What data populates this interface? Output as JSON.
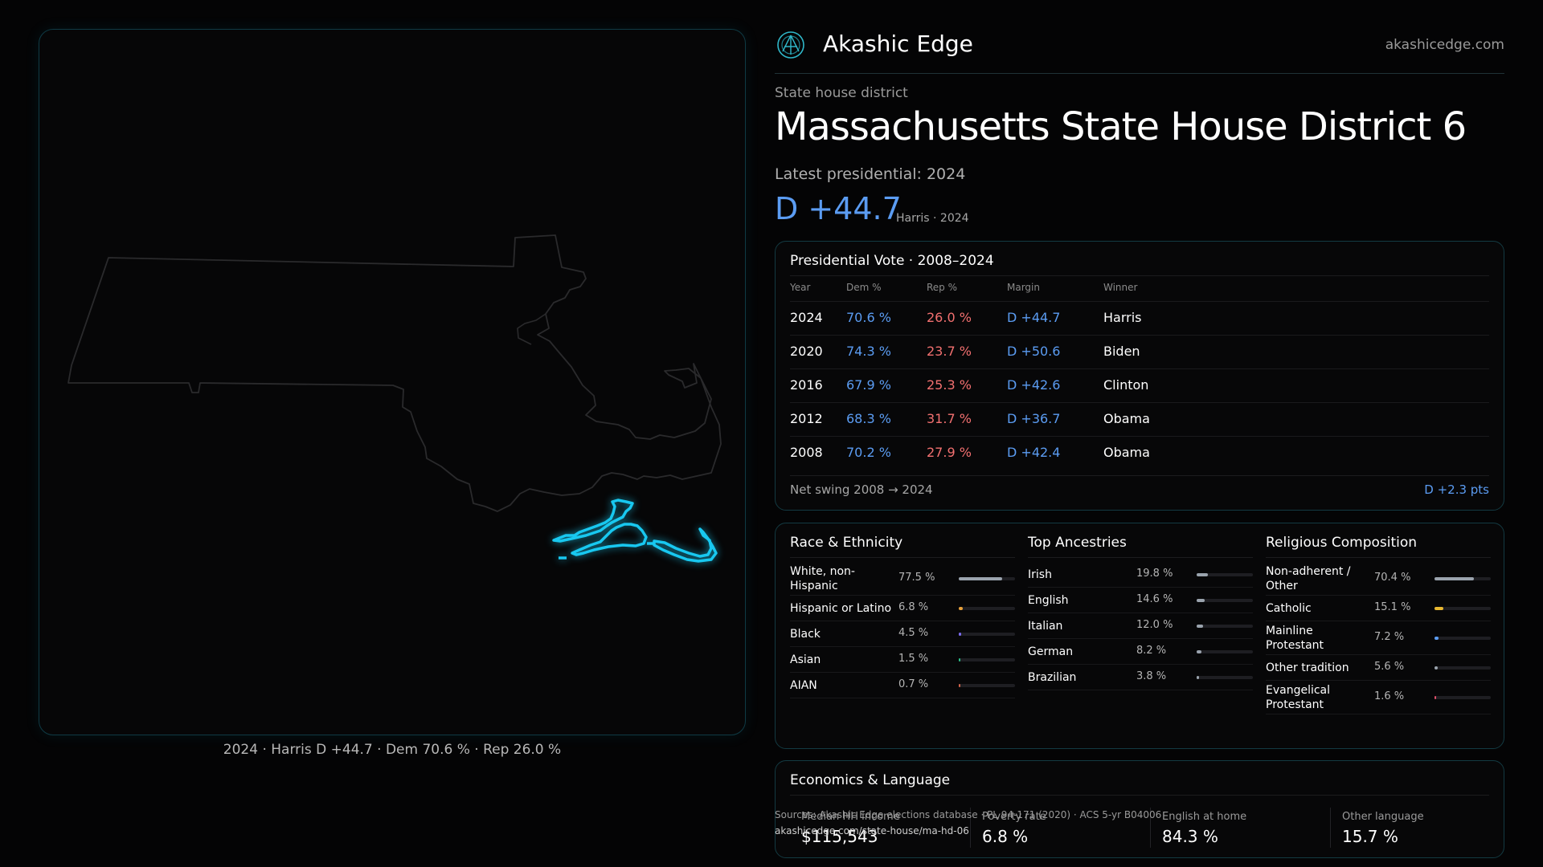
{
  "brand": {
    "name": "Akashic Edge",
    "url": "akashicedge.com"
  },
  "header": {
    "subtitle": "State house district",
    "title": "Massachusetts State House District 6",
    "latest": "Latest presidential: 2024",
    "margin": "D +44.7",
    "margin_sub": "Harris · 2024"
  },
  "map": {
    "caption": "2024 · Harris D +44.7 · Dem 70.6 % · Rep 26.0 %",
    "outline_color": "#2a2a2c",
    "district_color": "#18c8f0"
  },
  "presidential": {
    "title": "Presidential Vote · 2008–2024",
    "columns": [
      "Year",
      "Dem %",
      "Rep %",
      "Margin",
      "Winner"
    ],
    "rows": [
      {
        "year": "2024",
        "dem": "70.6 %",
        "rep": "26.0 %",
        "margin": "D +44.7",
        "winner": "Harris"
      },
      {
        "year": "2020",
        "dem": "74.3 %",
        "rep": "23.7 %",
        "margin": "D +50.6",
        "winner": "Biden"
      },
      {
        "year": "2016",
        "dem": "67.9 %",
        "rep": "25.3 %",
        "margin": "D +42.6",
        "winner": "Clinton"
      },
      {
        "year": "2012",
        "dem": "68.3 %",
        "rep": "31.7 %",
        "margin": "D +36.7",
        "winner": "Obama"
      },
      {
        "year": "2008",
        "dem": "70.2 %",
        "rep": "27.9 %",
        "margin": "D +42.4",
        "winner": "Obama"
      }
    ],
    "net_swing_label": "Net swing 2008 → 2024",
    "net_swing_value": "D +2.3 pts"
  },
  "race": {
    "title": "Race & Ethnicity",
    "items": [
      {
        "label": "White, non-Hispanic",
        "value": "77.5 %",
        "pct": 77.5,
        "color": "#9aa3ad"
      },
      {
        "label": "Hispanic or Latino",
        "value": "6.8 %",
        "pct": 6.8,
        "color": "#e8a13a"
      },
      {
        "label": "Black",
        "value": "4.5 %",
        "pct": 4.5,
        "color": "#7b6cf0"
      },
      {
        "label": "Asian",
        "value": "1.5 %",
        "pct": 1.5,
        "color": "#2bbf8a"
      },
      {
        "label": "AIAN",
        "value": "0.7 %",
        "pct": 0.7,
        "color": "#d4644a"
      }
    ]
  },
  "ancestry": {
    "title": "Top Ancestries",
    "items": [
      {
        "label": "Irish",
        "value": "19.8 %",
        "pct": 19.8,
        "color": "#9aa3ad"
      },
      {
        "label": "English",
        "value": "14.6 %",
        "pct": 14.6,
        "color": "#9aa3ad"
      },
      {
        "label": "Italian",
        "value": "12.0 %",
        "pct": 12.0,
        "color": "#9aa3ad"
      },
      {
        "label": "German",
        "value": "8.2 %",
        "pct": 8.2,
        "color": "#9aa3ad"
      },
      {
        "label": "Brazilian",
        "value": "3.8 %",
        "pct": 3.8,
        "color": "#9aa3ad"
      }
    ]
  },
  "religion": {
    "title": "Religious Composition",
    "items": [
      {
        "label": "Non-adherent / Other",
        "value": "70.4 %",
        "pct": 70.4,
        "color": "#9aa3ad"
      },
      {
        "label": "Catholic",
        "value": "15.1 %",
        "pct": 15.1,
        "color": "#e8b830"
      },
      {
        "label": "Mainline Protestant",
        "value": "7.2 %",
        "pct": 7.2,
        "color": "#5b9cf2"
      },
      {
        "label": "Other tradition",
        "value": "5.6 %",
        "pct": 5.6,
        "color": "#9aa3ad"
      },
      {
        "label": "Evangelical Protestant",
        "value": "1.6 %",
        "pct": 1.6,
        "color": "#e0506a"
      }
    ]
  },
  "economics": {
    "title": "Economics & Language",
    "cells": [
      {
        "label": "Median HH income",
        "value": "$115,543"
      },
      {
        "label": "Poverty rate",
        "value": "6.8 %"
      },
      {
        "label": "English at home",
        "value": "84.3 %"
      },
      {
        "label": "Other language",
        "value": "15.7 %"
      }
    ]
  },
  "footer": {
    "sources": "Sources: Akashic Edge elections database · PL 94-171 (2020) · ACS 5-yr B04006",
    "url": "akashicedge.com/state-house/ma-hd-06"
  }
}
